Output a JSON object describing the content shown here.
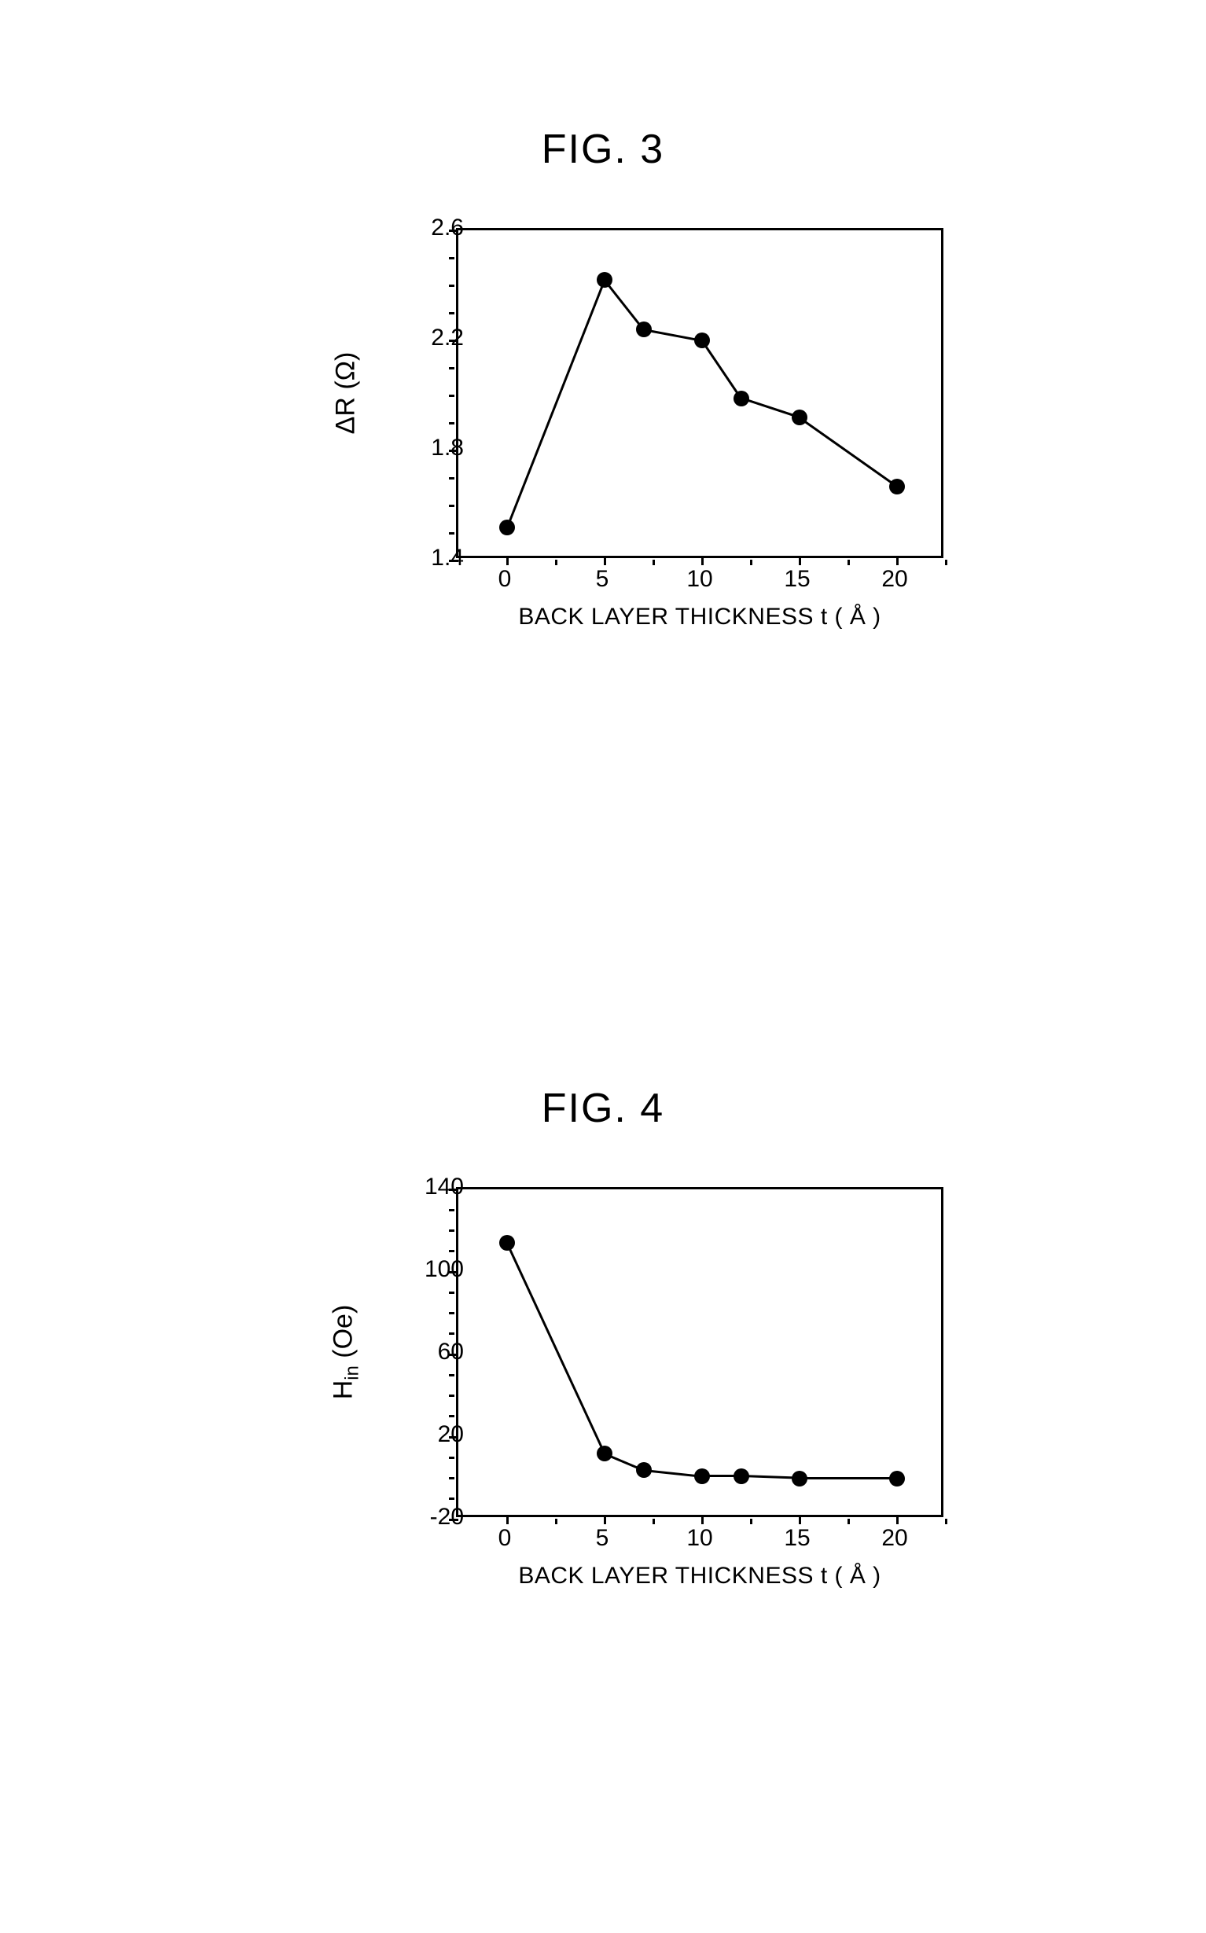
{
  "fig3": {
    "title": "FIG. 3",
    "title_fontsize": 52,
    "ylabel": "ΔR (Ω)",
    "xlabel": "BACK LAYER THICKNESS t ( Å )",
    "label_fontsize": 34,
    "tick_fontsize": 30,
    "type": "line-scatter",
    "xlim": [
      -2.5,
      22.5
    ],
    "ylim": [
      1.4,
      2.6
    ],
    "xtick_step": 5,
    "ytick_step": 0.4,
    "xminor_step": 2.5,
    "yminor_step": 0.1,
    "xticks": [
      0,
      5,
      10,
      15,
      20
    ],
    "yticks": [
      1.4,
      1.8,
      2.2,
      2.6
    ],
    "xtick_labels": [
      "0",
      "5",
      "10",
      "15",
      "20"
    ],
    "ytick_labels": [
      "1.4",
      "1.8",
      "2.2",
      "2.6"
    ],
    "data_x": [
      0,
      5,
      7,
      10,
      12,
      15,
      20
    ],
    "data_y": [
      1.52,
      2.42,
      2.24,
      2.2,
      1.99,
      1.92,
      1.67
    ],
    "line_color": "#000000",
    "line_width": 3,
    "marker": "circle",
    "marker_size": 20,
    "marker_color": "#000000",
    "background_color": "#ffffff",
    "border_color": "#000000"
  },
  "fig4": {
    "title": "FIG. 4",
    "title_fontsize": 52,
    "ylabel": "Hin (Oe)",
    "ylabel_sub": "in",
    "xlabel": "BACK LAYER THICKNESS t ( Å )",
    "label_fontsize": 34,
    "tick_fontsize": 30,
    "type": "line-scatter",
    "xlim": [
      -2.5,
      22.5
    ],
    "ylim": [
      -20,
      140
    ],
    "xtick_step": 5,
    "ytick_step": 40,
    "xminor_step": 2.5,
    "yminor_step": 10,
    "xticks": [
      0,
      5,
      10,
      15,
      20
    ],
    "yticks": [
      -20,
      20,
      60,
      100,
      140
    ],
    "xtick_labels": [
      "0",
      "5",
      "10",
      "15",
      "20"
    ],
    "ytick_labels": [
      "-20",
      "20",
      "60",
      "100",
      "140"
    ],
    "data_x": [
      0,
      5,
      7,
      10,
      12,
      15,
      20
    ],
    "data_y": [
      114,
      12,
      4,
      1,
      1,
      0,
      0
    ],
    "line_color": "#000000",
    "line_width": 3,
    "marker": "circle",
    "marker_size": 20,
    "marker_color": "#000000",
    "background_color": "#ffffff",
    "border_color": "#000000"
  }
}
